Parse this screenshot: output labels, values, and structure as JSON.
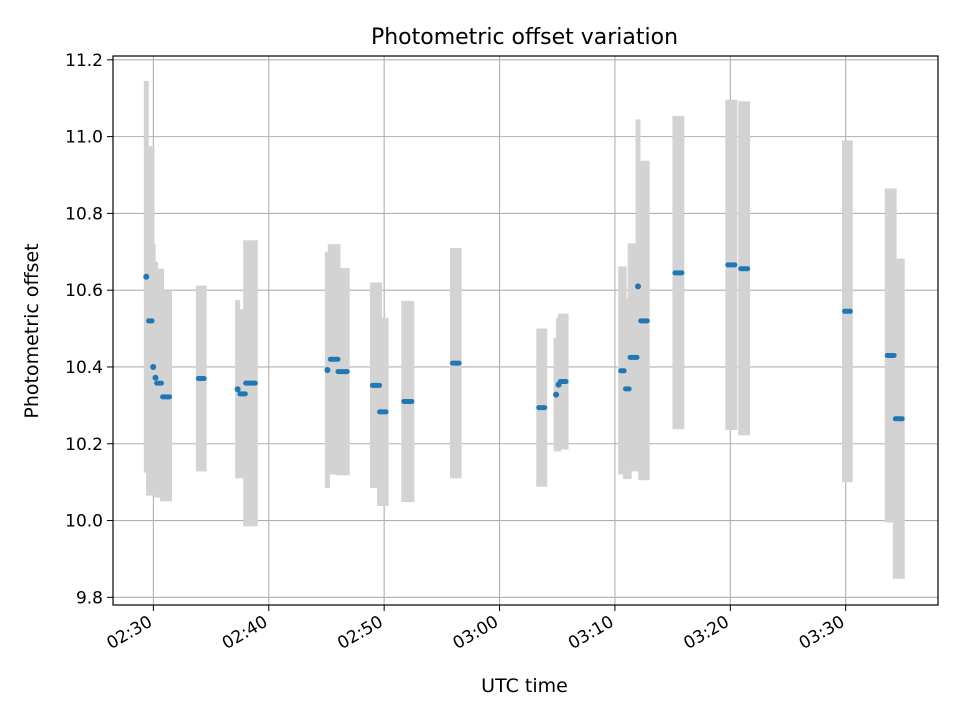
{
  "chart_data": {
    "type": "scatter",
    "title": "Photometric offset variation",
    "xlabel": "UTC time",
    "ylabel": "Photometric offset",
    "x_is_time": true,
    "xlim": [
      "02:26:30",
      "03:38:00"
    ],
    "ylim": [
      9.78,
      11.21
    ],
    "xticks": [
      "02:30",
      "02:40",
      "02:50",
      "03:00",
      "03:10",
      "03:20",
      "03:30"
    ],
    "yticks": [
      "9.8",
      "10.0",
      "10.2",
      "10.4",
      "10.6",
      "10.8",
      "11.0",
      "11.2"
    ],
    "grid": true,
    "colors": {
      "point": "#1f77b4",
      "errorbar": "#d3d3d3",
      "grid": "#b0b0b0"
    },
    "series": [
      {
        "points": [
          {
            "start": "02:29:23",
            "end": "02:29:23",
            "y": 10.635,
            "lo": 10.125,
            "hi": 11.145
          },
          {
            "start": "02:29:35",
            "end": "02:29:53",
            "y": 10.52,
            "lo": 10.065,
            "hi": 10.975
          },
          {
            "start": "02:29:59",
            "end": "02:29:59",
            "y": 10.4,
            "lo": 10.08,
            "hi": 10.72
          },
          {
            "start": "02:30:11",
            "end": "02:30:11",
            "y": 10.372,
            "lo": 10.07,
            "hi": 10.674
          },
          {
            "start": "02:30:17",
            "end": "02:30:42",
            "y": 10.358,
            "lo": 10.06,
            "hi": 10.656
          },
          {
            "start": "02:30:48",
            "end": "02:31:24",
            "y": 10.322,
            "lo": 10.05,
            "hi": 10.6
          },
          {
            "start": "02:33:54",
            "end": "02:34:24",
            "y": 10.37,
            "lo": 10.128,
            "hi": 10.612
          },
          {
            "start": "02:37:18",
            "end": "02:37:18",
            "y": 10.342,
            "lo": 10.11,
            "hi": 10.574
          },
          {
            "start": "02:37:30",
            "end": "02:37:58",
            "y": 10.33,
            "lo": 10.11,
            "hi": 10.55
          },
          {
            "start": "02:38:00",
            "end": "02:38:50",
            "y": 10.358,
            "lo": 9.985,
            "hi": 10.73
          },
          {
            "start": "02:45:05",
            "end": "02:45:05",
            "y": 10.392,
            "lo": 10.085,
            "hi": 10.7
          },
          {
            "start": "02:45:20",
            "end": "02:46:00",
            "y": 10.42,
            "lo": 10.12,
            "hi": 10.72
          },
          {
            "start": "02:46:00",
            "end": "02:46:48",
            "y": 10.388,
            "lo": 10.118,
            "hi": 10.658
          },
          {
            "start": "02:48:59",
            "end": "02:49:36",
            "y": 10.352,
            "lo": 10.085,
            "hi": 10.62
          },
          {
            "start": "02:49:36",
            "end": "02:50:10",
            "y": 10.283,
            "lo": 10.038,
            "hi": 10.528
          },
          {
            "start": "02:51:42",
            "end": "02:52:24",
            "y": 10.31,
            "lo": 10.048,
            "hi": 10.572
          },
          {
            "start": "02:55:55",
            "end": "02:56:30",
            "y": 10.41,
            "lo": 10.11,
            "hi": 10.71
          },
          {
            "start": "03:03:24",
            "end": "03:03:55",
            "y": 10.294,
            "lo": 10.088,
            "hi": 10.5
          },
          {
            "start": "03:04:54",
            "end": "03:04:54",
            "y": 10.328,
            "lo": 10.18,
            "hi": 10.476
          },
          {
            "start": "03:05:07",
            "end": "03:05:07",
            "y": 10.354,
            "lo": 10.18,
            "hi": 10.528
          },
          {
            "start": "03:05:16",
            "end": "03:05:46",
            "y": 10.362,
            "lo": 10.185,
            "hi": 10.539
          },
          {
            "start": "03:10:30",
            "end": "03:10:48",
            "y": 10.39,
            "lo": 10.12,
            "hi": 10.662
          },
          {
            "start": "03:10:55",
            "end": "03:11:14",
            "y": 10.343,
            "lo": 10.108,
            "hi": 10.578
          },
          {
            "start": "03:11:19",
            "end": "03:11:55",
            "y": 10.425,
            "lo": 10.128,
            "hi": 10.722
          },
          {
            "start": "03:12:00",
            "end": "03:12:00",
            "y": 10.61,
            "lo": 10.17,
            "hi": 11.045
          },
          {
            "start": "03:12:14",
            "end": "03:12:48",
            "y": 10.52,
            "lo": 10.105,
            "hi": 10.937
          },
          {
            "start": "03:15:12",
            "end": "03:15:48",
            "y": 10.645,
            "lo": 10.238,
            "hi": 11.054
          },
          {
            "start": "03:19:47",
            "end": "03:20:24",
            "y": 10.666,
            "lo": 10.236,
            "hi": 11.096
          },
          {
            "start": "03:20:54",
            "end": "03:21:30",
            "y": 10.656,
            "lo": 10.222,
            "hi": 11.092
          },
          {
            "start": "03:29:54",
            "end": "03:30:24",
            "y": 10.545,
            "lo": 10.1,
            "hi": 10.99
          },
          {
            "start": "03:33:36",
            "end": "03:34:12",
            "y": 10.43,
            "lo": 9.995,
            "hi": 10.865
          },
          {
            "start": "03:34:18",
            "end": "03:34:54",
            "y": 10.265,
            "lo": 9.848,
            "hi": 10.682
          }
        ]
      }
    ]
  }
}
